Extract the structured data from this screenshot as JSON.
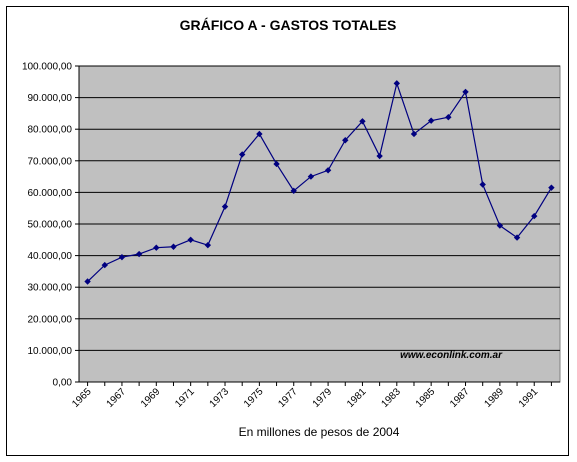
{
  "chart_data": {
    "type": "line",
    "title": "GRÁFICO A - GASTOS TOTALES",
    "xlabel": "En millones de pesos de 2004",
    "ylabel": "",
    "ylim": [
      0,
      100000
    ],
    "y_ticks": [
      0,
      10000,
      20000,
      30000,
      40000,
      50000,
      60000,
      70000,
      80000,
      90000,
      100000
    ],
    "y_tick_labels": [
      "0,00",
      "10.000,00",
      "20.000,00",
      "30.000,00",
      "40.000,00",
      "50.000,00",
      "60.000,00",
      "70.000,00",
      "80.000,00",
      "90.000,00",
      "100.000,00"
    ],
    "x_tick_labels": [
      "1965",
      "1967",
      "1969",
      "1971",
      "1973",
      "1975",
      "1977",
      "1979",
      "1981",
      "1983",
      "1985",
      "1987",
      "1989",
      "1991"
    ],
    "x": [
      1965,
      1966,
      1967,
      1968,
      1969,
      1970,
      1971,
      1972,
      1973,
      1974,
      1975,
      1976,
      1977,
      1978,
      1979,
      1980,
      1981,
      1982,
      1983,
      1984,
      1985,
      1986,
      1987,
      1988,
      1989,
      1990,
      1991,
      1992
    ],
    "series": [
      {
        "values": [
          31800,
          37000,
          39500,
          40500,
          42500,
          42800,
          45000,
          43300,
          55500,
          72000,
          78500,
          69000,
          60500,
          65000,
          67000,
          76500,
          82500,
          71500,
          94500,
          78500,
          82700,
          83800,
          91800,
          62500,
          49500,
          45700,
          52500,
          61500
        ]
      }
    ],
    "grid": true,
    "legend": "none",
    "annotation": "www.econlink.com.ar",
    "colors": {
      "line": "#000080",
      "plot_background": "#c0c0c0",
      "gridline": "#000000"
    }
  }
}
